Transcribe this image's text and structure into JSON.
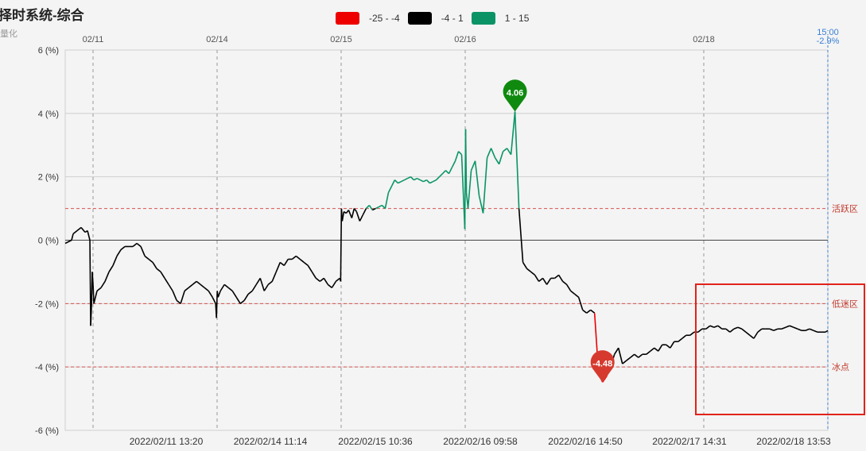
{
  "header": {
    "title": "择时系统-综合",
    "subtitle": "量化"
  },
  "legend": [
    {
      "label": "-25 - -4",
      "color": "#ee0000"
    },
    {
      "label": "-4 - 1",
      "color": "#000000"
    },
    {
      "label": "1 - 15",
      "color": "#0a9466"
    }
  ],
  "chart_data": {
    "type": "line",
    "title": "择时系统-综合",
    "ylim": [
      -6,
      6
    ],
    "y_ticks": [
      "6 (%)",
      "4 (%)",
      "2 (%)",
      "0 (%)",
      "-2 (%)",
      "-4 (%)",
      "-6 (%)"
    ],
    "top_date_labels": [
      "02/11",
      "02/14",
      "02/15",
      "02/16",
      "02/18"
    ],
    "bottom_time_labels": [
      "2022/02/11 13:20",
      "2022/02/14 11:14",
      "2022/02/15 10:36",
      "2022/02/16 09:58",
      "2022/02/16 14:50",
      "2022/02/17 14:31",
      "2022/02/18 13:53"
    ],
    "end_marker": {
      "time": "15:00",
      "value": "-2.9%"
    },
    "reference_lines": [
      {
        "value": 1,
        "label": "活跃区"
      },
      {
        "value": -2,
        "label": "低迷区"
      },
      {
        "value": -4,
        "label": "冰点"
      }
    ],
    "pins": [
      {
        "label": "4.06",
        "value": 4.06,
        "color": "#0f8a0f"
      },
      {
        "label": "-4.48",
        "value": -4.48,
        "color": "#d63a2f"
      }
    ],
    "color_bands": [
      {
        "range": "-25 - -4",
        "color": "#ee0000"
      },
      {
        "range": "-4 - 1",
        "color": "#000000"
      },
      {
        "range": "1 - 15",
        "color": "#0a9466"
      }
    ],
    "series": [
      {
        "index": [
          0,
          8,
          10,
          15,
          20,
          25,
          28,
          31,
          32,
          33,
          34,
          35,
          36,
          40,
          45,
          50,
          55,
          60,
          65,
          70,
          75,
          80,
          85,
          90,
          95,
          100,
          105,
          110,
          115,
          120,
          125,
          130,
          135,
          140,
          145,
          150,
          155,
          160,
          165,
          170,
          175,
          180,
          185,
          189,
          190,
          191,
          192,
          195,
          200,
          205,
          210,
          215,
          220,
          225,
          230,
          235,
          240,
          245,
          250,
          255,
          260,
          265,
          270,
          275,
          280,
          285,
          290,
          295,
          300,
          305,
          310,
          315,
          320,
          325,
          330,
          335,
          340,
          345,
          346,
          347,
          348,
          350,
          353,
          356,
          360,
          363,
          366,
          370,
          374,
          378,
          382,
          386,
          390,
          394,
          398,
          402,
          406,
          410,
          414,
          418,
          422,
          426,
          430,
          434,
          438,
          442,
          446,
          450,
          454,
          458,
          462,
          466,
          470,
          474,
          478,
          482,
          486,
          490,
          494,
          498,
          502,
          503,
          504,
          506,
          510,
          515,
          520,
          525,
          530,
          535,
          540,
          545,
          550,
          555,
          560,
          565,
          570,
          575,
          580,
          585,
          590,
          595,
          600,
          605,
          610,
          615,
          620,
          625,
          630,
          635,
          640,
          645,
          650,
          655,
          660,
          665,
          670,
          675,
          680,
          685,
          690,
          695,
          700,
          705,
          710,
          715,
          720,
          725,
          730,
          735,
          740,
          745,
          750,
          755,
          760,
          765,
          770,
          775,
          780,
          785,
          790,
          795,
          800,
          805,
          810,
          815,
          820,
          825,
          830,
          835,
          840,
          845,
          850,
          855,
          860,
          865,
          870,
          875,
          880,
          885,
          890,
          895,
          900,
          905,
          910,
          915,
          920,
          925,
          930,
          935,
          940,
          945,
          950,
          955,
          958
        ],
        "values": [
          -0.1,
          0.0,
          0.2,
          0.3,
          0.4,
          0.25,
          0.3,
          0.0,
          -2.7,
          -2.1,
          -1.0,
          -1.4,
          -2.0,
          -1.6,
          -1.5,
          -1.3,
          -1.0,
          -0.8,
          -0.5,
          -0.3,
          -0.2,
          -0.2,
          -0.2,
          -0.1,
          -0.2,
          -0.5,
          -0.6,
          -0.7,
          -0.9,
          -1.0,
          -1.2,
          -1.4,
          -1.6,
          -1.9,
          -2.0,
          -1.6,
          -1.5,
          -1.4,
          -1.3,
          -1.4,
          -1.5,
          -1.6,
          -1.8,
          -2.0,
          -2.45,
          -1.6,
          -1.8,
          -1.6,
          -1.4,
          -1.5,
          -1.6,
          -1.8,
          -2.0,
          -1.9,
          -1.7,
          -1.6,
          -1.4,
          -1.2,
          -1.6,
          -1.4,
          -1.3,
          -1.0,
          -0.7,
          -0.8,
          -0.6,
          -0.6,
          -0.5,
          -0.6,
          -0.7,
          -0.8,
          -1.0,
          -1.2,
          -1.3,
          -1.2,
          -1.4,
          -1.5,
          -1.3,
          -1.2,
          -1.3,
          1.0,
          0.6,
          0.9,
          0.85,
          0.95,
          0.7,
          1.0,
          0.9,
          0.6,
          0.8,
          1.0,
          1.1,
          0.95,
          1.0,
          1.05,
          1.1,
          1.0,
          1.5,
          1.7,
          1.9,
          1.8,
          1.85,
          1.9,
          1.95,
          2.0,
          1.9,
          1.95,
          1.9,
          1.85,
          1.9,
          1.8,
          1.85,
          1.9,
          2.0,
          2.1,
          2.2,
          2.1,
          2.3,
          2.5,
          2.8,
          2.7,
          0.35,
          3.5,
          1.5,
          1.0,
          2.2,
          2.5,
          1.4,
          0.85,
          2.6,
          2.9,
          2.6,
          2.4,
          2.8,
          2.9,
          2.7,
          4.06,
          1.0,
          -0.7,
          -0.9,
          -1.0,
          -1.1,
          -1.3,
          -1.2,
          -1.4,
          -1.2,
          -1.2,
          -1.1,
          -1.3,
          -1.4,
          -1.6,
          -1.7,
          -1.8,
          -2.2,
          -2.3,
          -2.2,
          -2.3,
          -4.2,
          -4.48,
          -4.3,
          -4.0,
          -3.6,
          -3.4,
          -3.9,
          -3.8,
          -3.7,
          -3.6,
          -3.7,
          -3.6,
          -3.6,
          -3.5,
          -3.4,
          -3.5,
          -3.3,
          -3.3,
          -3.4,
          -3.2,
          -3.2,
          -3.1,
          -3.0,
          -3.0,
          -2.9,
          -2.9,
          -2.8,
          -2.8,
          -2.7,
          -2.75,
          -2.7,
          -2.8,
          -2.8,
          -2.9,
          -2.8,
          -2.75,
          -2.8,
          -2.9,
          -3.0,
          -3.1,
          -2.9,
          -2.8,
          -2.8,
          -2.8,
          -2.85,
          -2.8,
          -2.8,
          -2.75,
          -2.7,
          -2.75,
          -2.8,
          -2.85,
          -2.85,
          -2.8,
          -2.85,
          -2.9,
          -2.9,
          -2.9,
          -2.85
        ]
      }
    ]
  }
}
